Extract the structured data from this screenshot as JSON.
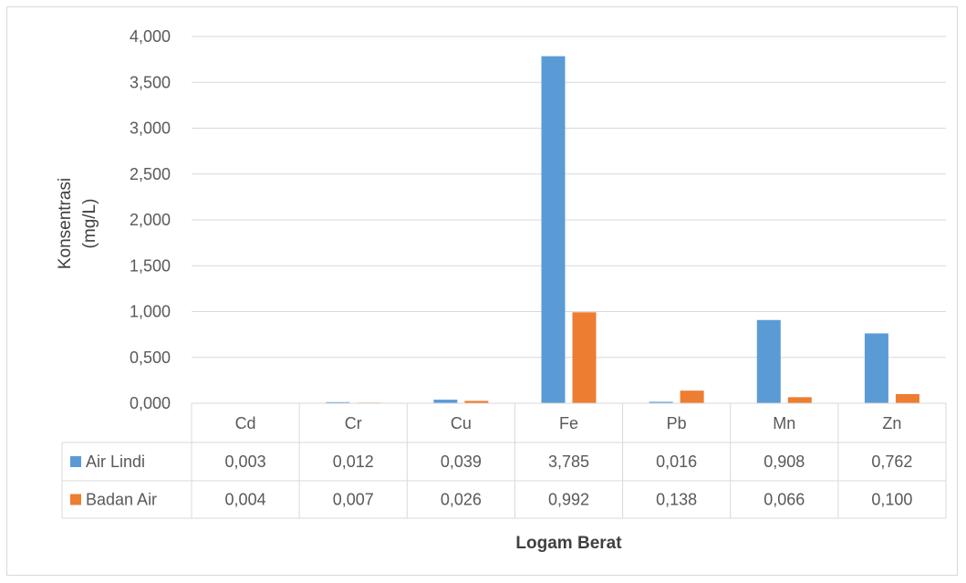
{
  "chart_data": {
    "type": "bar",
    "categories": [
      "Cd",
      "Cr",
      "Cu",
      "Fe",
      "Pb",
      "Mn",
      "Zn"
    ],
    "series": [
      {
        "name": "Air Lindi",
        "color": "#5b9bd5",
        "values": [
          0.003,
          0.012,
          0.039,
          3.785,
          0.016,
          0.908,
          0.762
        ],
        "labels": [
          "0,003",
          "0,012",
          "0,039",
          "3,785",
          "0,016",
          "0,908",
          "0,762"
        ]
      },
      {
        "name": "Badan Air",
        "color": "#ed7d31",
        "values": [
          0.004,
          0.007,
          0.026,
          0.992,
          0.138,
          0.066,
          0.1
        ],
        "labels": [
          "0,004",
          "0,007",
          "0,026",
          "0,992",
          "0,138",
          "0,066",
          "0,100"
        ]
      }
    ],
    "ylim": [
      0,
      4
    ],
    "yticks": [
      0,
      0.5,
      1,
      1.5,
      2,
      2.5,
      3,
      3.5,
      4
    ],
    "ytick_labels": [
      "0,000",
      "0,500",
      "1,000",
      "1,500",
      "2,000",
      "2,500",
      "3,000",
      "3,500",
      "4,000"
    ],
    "ylabel_line1": "Konsentrasi",
    "ylabel_line2": "(mg/L)",
    "xlabel": "Logam Berat",
    "grid": true,
    "legend": "data-table"
  }
}
